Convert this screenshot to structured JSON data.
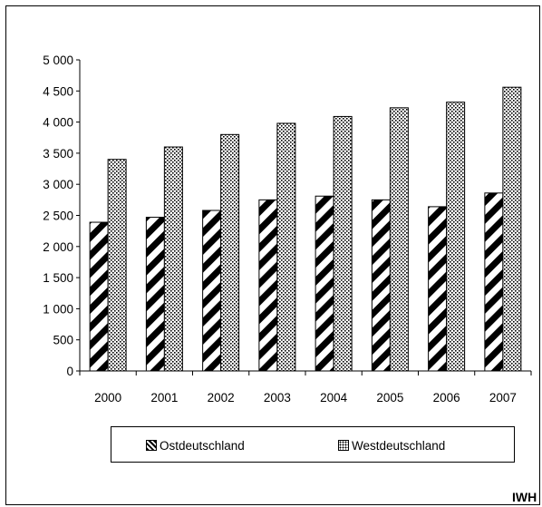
{
  "chart_data": {
    "type": "bar",
    "categories": [
      "2000",
      "2001",
      "2002",
      "2003",
      "2004",
      "2005",
      "2006",
      "2007"
    ],
    "series": [
      {
        "name": "Ostdeutschland",
        "values": [
          2390,
          2470,
          2580,
          2750,
          2810,
          2750,
          2640,
          2860
        ],
        "pattern": "diagonal-stripes"
      },
      {
        "name": "Westdeutschland",
        "values": [
          3400,
          3600,
          3800,
          3980,
          4090,
          4230,
          4320,
          4560
        ],
        "pattern": "dotted"
      }
    ],
    "y_ticks": [
      "0",
      "500",
      "1 000",
      "1 500",
      "2 000",
      "2 500",
      "3 000",
      "3 500",
      "4 000",
      "4 500",
      "5 000"
    ],
    "ylim": [
      0,
      5000
    ],
    "grid": false,
    "legend_position": "bottom",
    "title": "",
    "xlabel": "",
    "ylabel": ""
  },
  "legend": {
    "items": [
      "Ostdeutschland",
      "Westdeutschland"
    ]
  },
  "source_label": "IWH"
}
